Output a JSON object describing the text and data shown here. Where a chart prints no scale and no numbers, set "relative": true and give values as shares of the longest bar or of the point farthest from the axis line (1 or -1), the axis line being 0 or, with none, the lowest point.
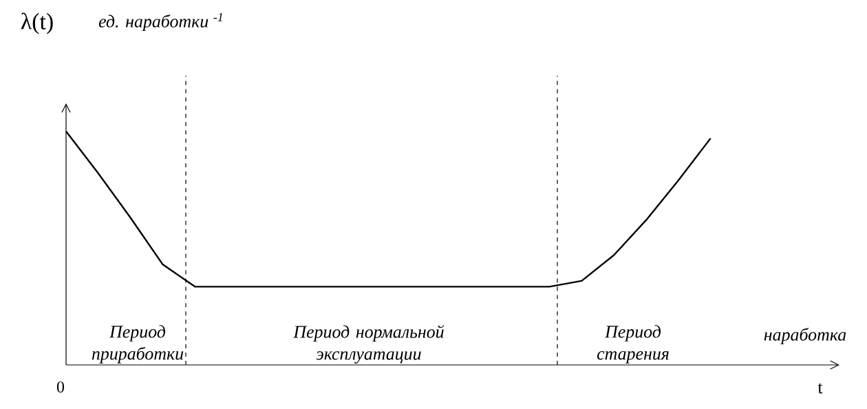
{
  "chart_data": {
    "type": "line",
    "relative": true,
    "ylabel": "λ(t)",
    "xlabel": "t",
    "categories": [
      null,
      null,
      null,
      null,
      null,
      null,
      null,
      null,
      null,
      null,
      null,
      null,
      null,
      null,
      null,
      null,
      null,
      null,
      null,
      null,
      null,
      null,
      null,
      null,
      null
    ],
    "values": [
      1.0,
      0.82,
      0.63,
      0.43,
      0.335,
      0.335,
      0.335,
      0.335,
      0.335,
      0.335,
      0.335,
      0.335,
      0.335,
      0.335,
      0.335,
      0.335,
      0.36,
      0.47,
      0.62,
      0.79,
      0.97,
      null,
      null,
      null,
      null
    ],
    "color": "#000000",
    "line_style": "solid",
    "annotations": [
      "ед. наработки $^{-1}$",
      "Период приработки",
      "Период нормальной эксплуатации",
      "Период старения",
      "наработка",
      "0"
    ]
  }
}
